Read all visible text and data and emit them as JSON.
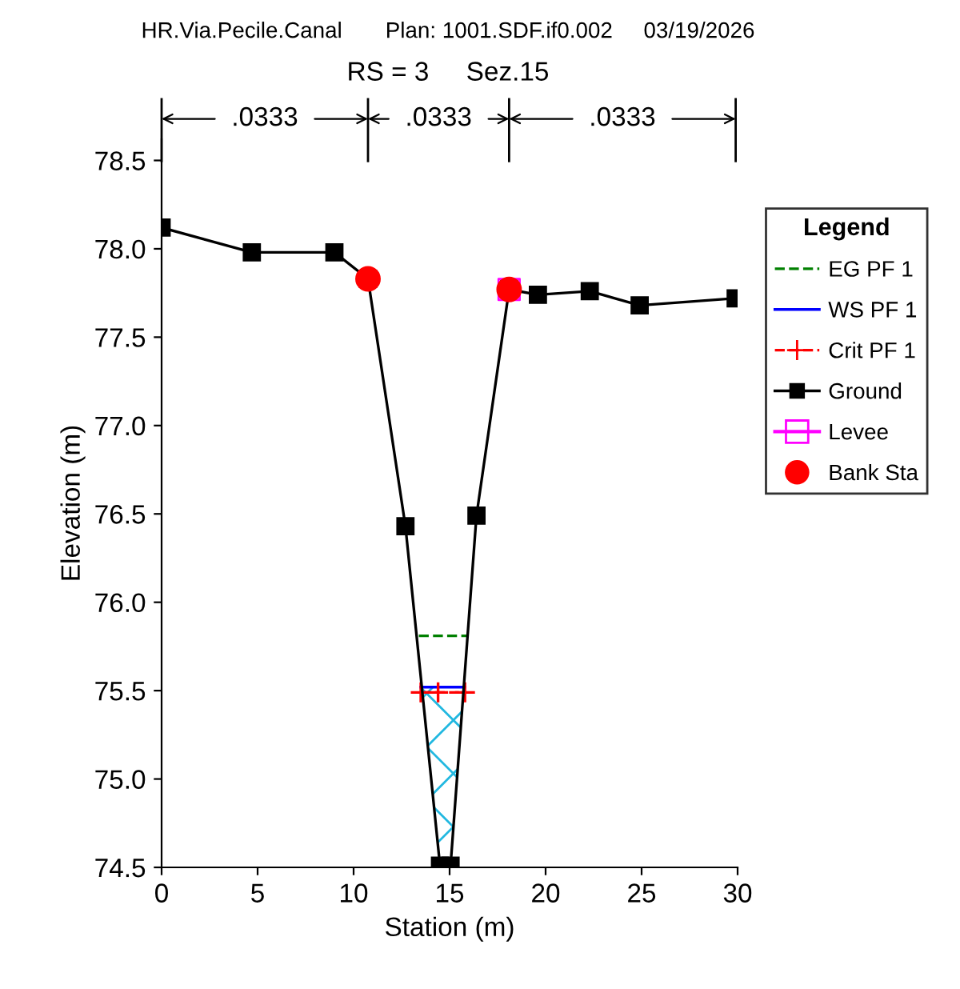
{
  "chart_data": {
    "type": "line",
    "title": "HR.Via.Pecile.Canal       Plan: 1001.SDF.if0.002     03/19/2026",
    "subtitle": "RS = 3     Sez.15",
    "xlabel": "Station (m)",
    "ylabel": "Elevation (m)",
    "legend_title": "Legend",
    "legend": "right",
    "grid": false,
    "xlim": [
      0,
      30
    ],
    "xticks": [
      0,
      5,
      10,
      15,
      20,
      25,
      30
    ],
    "ylim": [
      74.5,
      78.62
    ],
    "yticks": [
      74.5,
      {
        "value": 75,
        "label": "75.0"
      },
      75.5,
      {
        "value": 76,
        "label": "76.0"
      },
      76.5,
      {
        "value": 77,
        "label": "77.0"
      },
      77.5,
      {
        "value": 78,
        "label": "78.0"
      },
      78.5
    ],
    "series": [
      {
        "name": "EG PF 1",
        "color": "#008000",
        "line_style": "dashed",
        "marker": "none",
        "x": [
          13.4,
          16.0
        ],
        "values": [
          75.81,
          75.81
        ]
      },
      {
        "name": "WS PF 1",
        "color": "#0000ff",
        "line_style": "solid",
        "marker": "none",
        "x": [
          13.5,
          15.8
        ],
        "values": [
          75.52,
          75.52
        ]
      },
      {
        "name": "Crit PF 1",
        "color": "#ff0000",
        "line_style": "dashed",
        "marker": "cross",
        "x": [
          13.5,
          14.4,
          15.8
        ],
        "values": [
          75.49,
          75.49,
          75.49
        ]
      },
      {
        "name": "Ground",
        "color": "#000000",
        "line_style": "solid",
        "marker": "square",
        "x": [
          0,
          4.7,
          9.0,
          10.75,
          12.7,
          14.5,
          15.05,
          16.4,
          18.1,
          19.6,
          22.3,
          24.9,
          29.9
        ],
        "values": [
          78.12,
          77.98,
          77.98,
          77.83,
          76.43,
          74.51,
          74.51,
          76.49,
          77.77,
          77.74,
          77.76,
          77.68,
          77.72
        ]
      },
      {
        "name": "Levee",
        "type": "scatter",
        "color": "#ff00ff",
        "marker": "square",
        "x": [
          18.1
        ],
        "values": [
          77.77
        ]
      },
      {
        "name": "Bank Sta",
        "type": "scatter",
        "color": "#ff0000",
        "marker": "circle",
        "x": [
          10.75,
          18.1
        ],
        "values": [
          77.83,
          77.77
        ]
      }
    ],
    "annotations": [
      ".0333",
      ".0333",
      ".0333"
    ]
  }
}
